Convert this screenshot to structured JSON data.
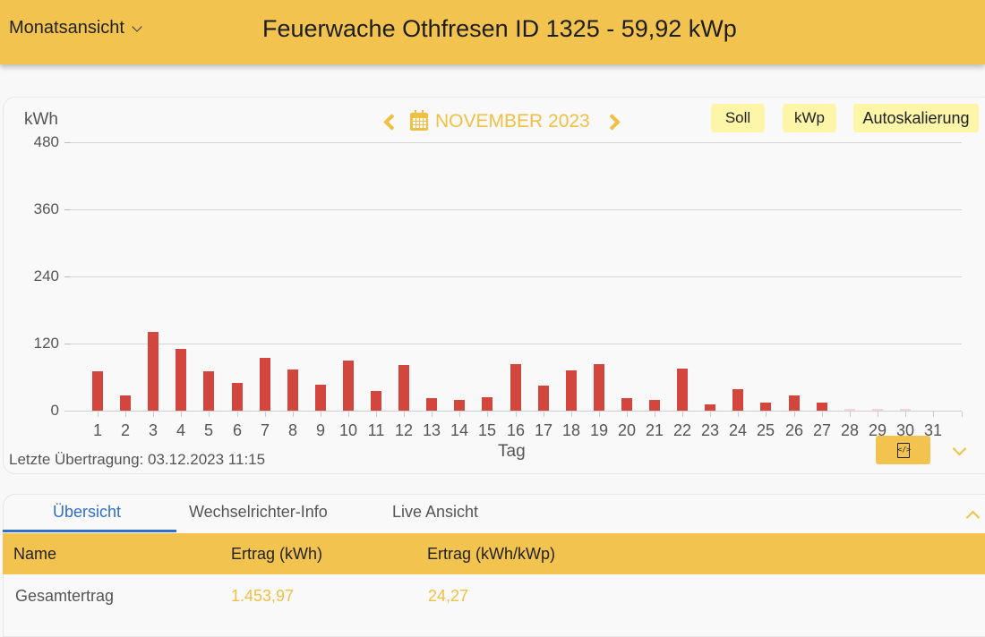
{
  "header": {
    "view_select": "Monatsansicht",
    "title": "Feuerwache Othfresen ID 1325 - 59,92 kWp"
  },
  "chart_controls": {
    "unit": "kWh",
    "month_label": "NOVEMBER 2023",
    "buttons": {
      "soll": "Soll",
      "kwp": "kWp",
      "autoscale": "Autoskalierung"
    }
  },
  "chart_data": {
    "type": "bar",
    "title": "NOVEMBER 2023",
    "xlabel": "Tag",
    "ylabel": "kWh",
    "ylim": [
      0,
      480
    ],
    "yticks": [
      0,
      120,
      240,
      360,
      480
    ],
    "grid": true,
    "legend": "none",
    "categories": [
      "1",
      "2",
      "3",
      "4",
      "5",
      "6",
      "7",
      "8",
      "9",
      "10",
      "11",
      "12",
      "13",
      "14",
      "15",
      "16",
      "17",
      "18",
      "19",
      "20",
      "21",
      "22",
      "23",
      "24",
      "25",
      "26",
      "27",
      "28",
      "29",
      "30",
      "31"
    ],
    "series": [
      {
        "name": "Ertrag (kWh)",
        "color": "#d3463e",
        "values": [
          70,
          28,
          141,
          111,
          70,
          50,
          95,
          74,
          47,
          89,
          35,
          81,
          23,
          20,
          24,
          83,
          45,
          72,
          83,
          23,
          19,
          76,
          12,
          38,
          15,
          27,
          15,
          1,
          1,
          1,
          0
        ]
      }
    ]
  },
  "footer": {
    "last_transmission": "Letzte Übertragung: 03.12.2023 11:15"
  },
  "tabs": [
    {
      "label": "Übersicht",
      "active": true
    },
    {
      "label": "Wechselrichter-Info",
      "active": false
    },
    {
      "label": "Live Ansicht",
      "active": false
    }
  ],
  "table": {
    "columns": [
      "Name",
      "Ertrag (kWh)",
      "Ertrag (kWh/kWp)"
    ],
    "rows": [
      [
        "Gesamtertrag",
        "1.453,97",
        "24,27"
      ]
    ]
  },
  "colors": {
    "brand": "#f2c34e",
    "bar": "#d3463e",
    "active_tab": "#2f6fc7",
    "option_button": "#fdf5a8"
  }
}
